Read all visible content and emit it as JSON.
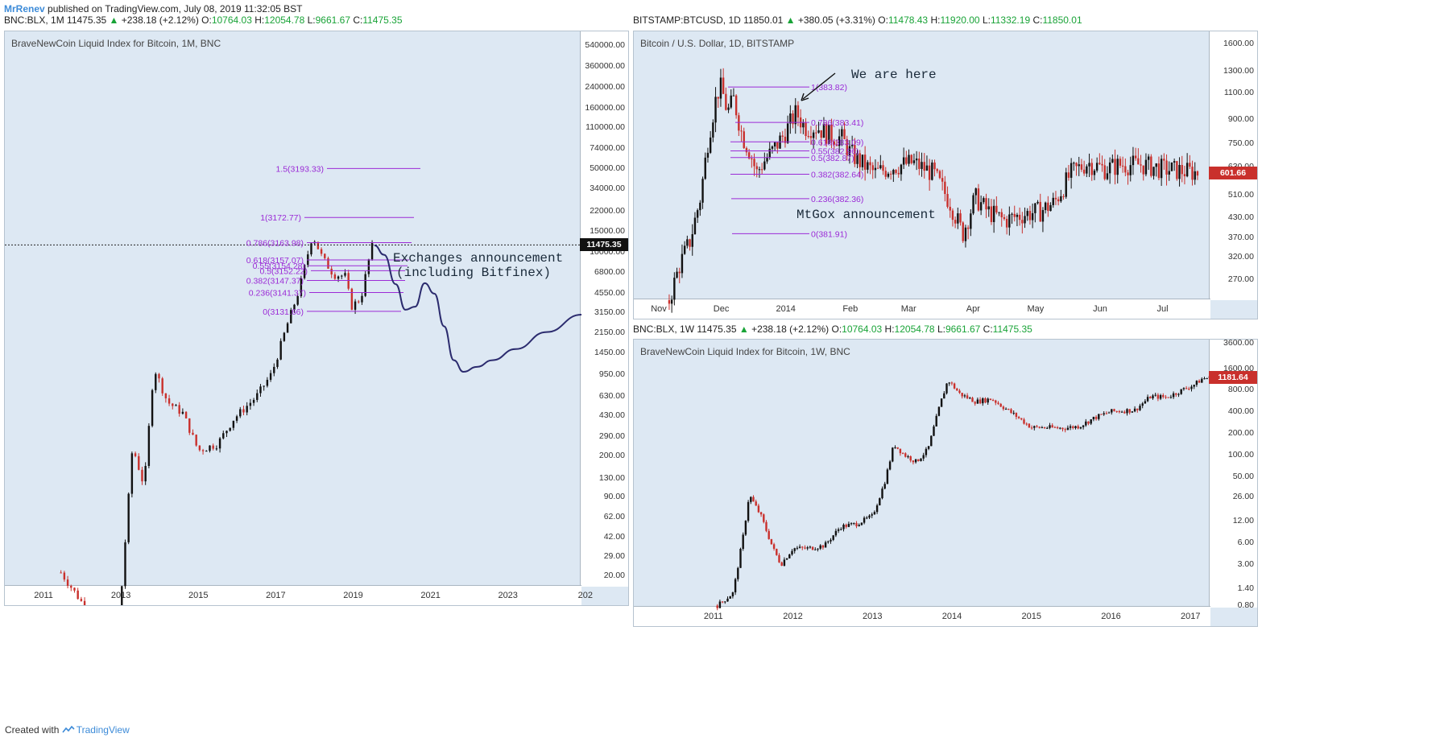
{
  "header": {
    "user": "MrRenev",
    "published_text": " published on TradingView.com, July 08, 2019 11:32:05 BST"
  },
  "colors": {
    "accent": "#3d8bd8",
    "up": "#19a337",
    "down": "#c9302c",
    "fib": "#9b2ad6",
    "panel_bg": "#dde8f3",
    "pen": "#2b2b6e"
  },
  "footer": {
    "created": "Created with",
    "brand": "TradingView",
    "icon": "tradingview-logo-icon"
  },
  "chart_data": [
    {
      "id": "monthly",
      "type": "candlestick",
      "quote": {
        "symbol": "BNC:BLX, 1M",
        "price": "11475.35",
        "change": "+238.18 (+2.12%)",
        "o": "10764.03",
        "h": "12054.78",
        "l": "9661.67",
        "c": "11475.35"
      },
      "title": "BraveNewCoin Liquid Index for Bitcoin, 1M, BNC",
      "y_scale": "log",
      "ylim": [
        16,
        700000
      ],
      "y_ticks": [
        "540000.00",
        "360000.00",
        "240000.00",
        "160000.00",
        "110000.00",
        "74000.00",
        "50000.00",
        "34000.00",
        "22000.00",
        "15000.00",
        "10000.00",
        "6800.00",
        "4550.00",
        "3150.00",
        "2150.00",
        "1450.00",
        "950.00",
        "630.00",
        "430.00",
        "290.00",
        "200.00",
        "130.00",
        "90.00",
        "62.00",
        "42.00",
        "29.00",
        "20.00"
      ],
      "x_ticks": [
        "2011",
        "2013",
        "2015",
        "2017",
        "2019",
        "2021",
        "2023",
        "202"
      ],
      "xlim": [
        2010.0,
        2024.9
      ],
      "last_price_label": "11475.35",
      "last_price": 11475.35,
      "price_path": [
        [
          2011.45,
          21
        ],
        [
          2012.8,
          5
        ],
        [
          2013.0,
          13
        ],
        [
          2013.3,
          240
        ],
        [
          2013.6,
          110
        ],
        [
          2013.85,
          1100
        ],
        [
          2014.2,
          560
        ],
        [
          2014.6,
          450
        ],
        [
          2015.0,
          220
        ],
        [
          2015.5,
          250
        ],
        [
          2015.9,
          400
        ],
        [
          2016.5,
          620
        ],
        [
          2016.9,
          970
        ],
        [
          2017.3,
          2500
        ],
        [
          2017.6,
          4800
        ],
        [
          2017.95,
          14000
        ],
        [
          2018.2,
          9000
        ],
        [
          2018.5,
          6500
        ],
        [
          2018.8,
          6300
        ],
        [
          2018.95,
          3500
        ],
        [
          2019.2,
          4100
        ],
        [
          2019.4,
          8500
        ],
        [
          2019.5,
          11475
        ]
      ],
      "fib_levels": [
        {
          "label": "1.5(3193.33)",
          "price": 50000
        },
        {
          "label": "1(3172.77)",
          "price": 19500
        },
        {
          "label": "0.786(3163.98)",
          "price": 12000
        },
        {
          "label": "0.618(3157.07)",
          "price": 8600
        },
        {
          "label": "0.55(3154.28)",
          "price": 7700
        },
        {
          "label": "0.5(3152.22)",
          "price": 7000
        },
        {
          "label": "0.382(3147.37)",
          "price": 5800
        },
        {
          "label": "0.236(3141.37)",
          "price": 4600
        },
        {
          "label": "0(3131.66)",
          "price": 3200
        }
      ],
      "annotation": [
        "Exchanges announcement",
        "(including Bitfinex)"
      ],
      "projection": [
        [
          2019.55,
          11400
        ],
        [
          2019.8,
          9500
        ],
        [
          2020.1,
          5400
        ],
        [
          2020.35,
          3300
        ],
        [
          2020.6,
          3500
        ],
        [
          2020.85,
          5500
        ],
        [
          2021.1,
          4500
        ],
        [
          2021.35,
          2400
        ],
        [
          2021.6,
          1250
        ],
        [
          2021.85,
          1000
        ],
        [
          2022.2,
          1100
        ],
        [
          2022.6,
          1250
        ],
        [
          2023.2,
          1550
        ],
        [
          2024.0,
          2150
        ],
        [
          2024.9,
          3000
        ]
      ]
    },
    {
      "id": "daily",
      "type": "candlestick",
      "quote": {
        "symbol": "BITSTAMP:BTCUSD, 1D",
        "price": "11850.01",
        "change": "+380.05 (+3.31%)",
        "o": "11478.43",
        "h": "11920.00",
        "l": "11332.19",
        "c": "11850.01"
      },
      "title": "Bitcoin / U.S. Dollar, 1D, BITSTAMP",
      "y_scale": "log",
      "ylim": [
        230,
        1750
      ],
      "y_ticks": [
        "1600.00",
        "1300.00",
        "1100.00",
        "900.00",
        "750.00",
        "630.00",
        "510.00",
        "430.00",
        "370.00",
        "320.00",
        "270.00"
      ],
      "x_ticks": [
        "Nov",
        "Dec",
        "2014",
        "Feb",
        "Mar",
        "Apr",
        "May",
        "Jun",
        "Jul"
      ],
      "x_tick_days": [
        0,
        30,
        61,
        92,
        120,
        151,
        181,
        212,
        242
      ],
      "xlim": [
        -12,
        265
      ],
      "last_price_label": "601.66",
      "last_price": 601.66,
      "price_path": [
        [
          5,
          230
        ],
        [
          10,
          300
        ],
        [
          15,
          360
        ],
        [
          20,
          500
        ],
        [
          24,
          800
        ],
        [
          28,
          1100
        ],
        [
          30,
          1150
        ],
        [
          33,
          950
        ],
        [
          36,
          1050
        ],
        [
          40,
          800
        ],
        [
          44,
          700
        ],
        [
          47,
          600
        ],
        [
          50,
          650
        ],
        [
          54,
          700
        ],
        [
          60,
          800
        ],
        [
          66,
          950
        ],
        [
          70,
          850
        ],
        [
          76,
          850
        ],
        [
          82,
          800
        ],
        [
          88,
          780
        ],
        [
          92,
          700
        ],
        [
          97,
          650
        ],
        [
          104,
          600
        ],
        [
          112,
          630
        ],
        [
          122,
          650
        ],
        [
          132,
          600
        ],
        [
          140,
          480
        ],
        [
          146,
          380
        ],
        [
          152,
          500
        ],
        [
          158,
          450
        ],
        [
          166,
          420
        ],
        [
          175,
          440
        ],
        [
          183,
          450
        ],
        [
          190,
          480
        ],
        [
          198,
          600
        ],
        [
          206,
          650
        ],
        [
          214,
          620
        ],
        [
          222,
          640
        ],
        [
          232,
          640
        ],
        [
          242,
          620
        ],
        [
          252,
          610
        ],
        [
          260,
          601
        ]
      ],
      "fib_levels": [
        {
          "label": "1(383.82)",
          "price": 1150
        },
        {
          "label": "0.786(383.41)",
          "price": 880
        },
        {
          "label": "0.618(383.09)",
          "price": 760
        },
        {
          "label": "0.55(382.96)",
          "price": 710
        },
        {
          "label": "0.5(382.87)",
          "price": 675
        },
        {
          "label": "0.382(382.64)",
          "price": 595
        },
        {
          "label": "0.236(382.36)",
          "price": 495
        },
        {
          "label": "0(381.91)",
          "price": 380
        }
      ],
      "annotations": [
        "We are here",
        "MtGox announcement"
      ]
    },
    {
      "id": "weekly",
      "type": "candlestick",
      "quote": {
        "symbol": "BNC:BLX, 1W",
        "price": "11475.35",
        "change": "+238.18 (+2.12%)",
        "o": "10764.03",
        "h": "12054.78",
        "l": "9661.67",
        "c": "11475.35"
      },
      "title": "BraveNewCoin Liquid Index for Bitcoin, 1W, BNC",
      "y_scale": "log",
      "ylim": [
        0.75,
        4000
      ],
      "y_ticks": [
        "3600.00",
        "1600.00",
        "800.00",
        "400.00",
        "200.00",
        "100.00",
        "50.00",
        "26.00",
        "12.00",
        "6.00",
        "3.00",
        "1.40",
        "0.80"
      ],
      "x_ticks": [
        "2011",
        "2012",
        "2013",
        "2014",
        "2015",
        "2016",
        "2017"
      ],
      "xlim": [
        2010.0,
        2017.25
      ],
      "last_price_label": "1181.64",
      "last_price": 1181.64,
      "price_path": [
        [
          2011.05,
          0.8
        ],
        [
          2011.25,
          1.2
        ],
        [
          2011.38,
          8
        ],
        [
          2011.45,
          28
        ],
        [
          2011.6,
          14
        ],
        [
          2011.75,
          5
        ],
        [
          2011.85,
          3
        ],
        [
          2012.0,
          5
        ],
        [
          2012.2,
          5
        ],
        [
          2012.4,
          5.5
        ],
        [
          2012.6,
          10
        ],
        [
          2012.8,
          11
        ],
        [
          2013.0,
          14
        ],
        [
          2013.15,
          40
        ],
        [
          2013.27,
          140
        ],
        [
          2013.4,
          100
        ],
        [
          2013.55,
          80
        ],
        [
          2013.7,
          120
        ],
        [
          2013.85,
          500
        ],
        [
          2013.95,
          1100
        ],
        [
          2014.1,
          700
        ],
        [
          2014.3,
          550
        ],
        [
          2014.5,
          600
        ],
        [
          2014.8,
          350
        ],
        [
          2015.0,
          240
        ],
        [
          2015.2,
          240
        ],
        [
          2015.4,
          235
        ],
        [
          2015.6,
          250
        ],
        [
          2015.8,
          330
        ],
        [
          2016.0,
          400
        ],
        [
          2016.3,
          420
        ],
        [
          2016.5,
          650
        ],
        [
          2016.7,
          630
        ],
        [
          2016.9,
          800
        ],
        [
          2017.05,
          950
        ],
        [
          2017.15,
          1150
        ],
        [
          2017.25,
          1181
        ]
      ]
    }
  ]
}
